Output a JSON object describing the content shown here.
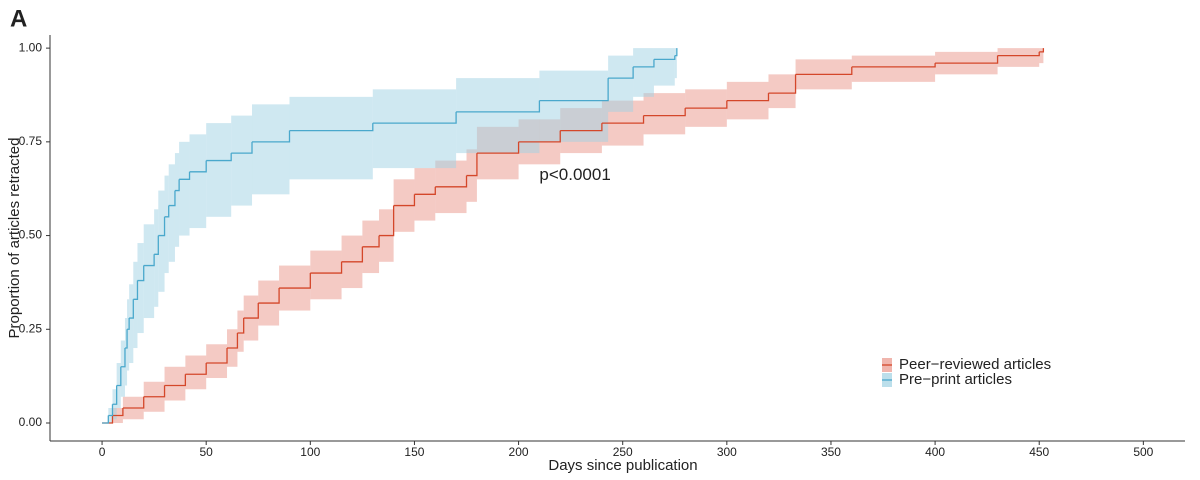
{
  "panel_label": "A",
  "chart_data": {
    "type": "step",
    "xlabel": "Days since publication",
    "ylabel": "Proportion of articles retracted",
    "annotation": {
      "text": "p<0.0001",
      "x": 210,
      "y": 0.66
    },
    "xlim": [
      -25,
      520
    ],
    "ylim": [
      -0.048,
      1.035
    ],
    "xticks": [
      0,
      50,
      100,
      150,
      200,
      250,
      300,
      350,
      400,
      450,
      500
    ],
    "yticks": [
      {
        "value": 0,
        "label": "0.00"
      },
      {
        "value": 0.25,
        "label": "0.25"
      },
      {
        "value": 0.5,
        "label": "0.50"
      },
      {
        "value": 0.75,
        "label": "0.75"
      },
      {
        "value": 1,
        "label": "1.00"
      }
    ],
    "legend_position": "bottom-right",
    "series": [
      {
        "name": "Peer−reviewed articles",
        "color": "#d4472a",
        "band_color": "#e9958a",
        "x": [
          0,
          5,
          10,
          20,
          30,
          40,
          50,
          60,
          65,
          68,
          75,
          85,
          100,
          115,
          125,
          133,
          140,
          150,
          160,
          175,
          180,
          200,
          220,
          240,
          260,
          280,
          300,
          320,
          333,
          360,
          400,
          430,
          450,
          452
        ],
        "values": [
          0,
          0.02,
          0.04,
          0.07,
          0.1,
          0.13,
          0.16,
          0.2,
          0.24,
          0.28,
          0.32,
          0.36,
          0.4,
          0.43,
          0.47,
          0.5,
          0.58,
          0.61,
          0.63,
          0.66,
          0.72,
          0.75,
          0.78,
          0.8,
          0.82,
          0.84,
          0.86,
          0.88,
          0.93,
          0.95,
          0.96,
          0.98,
          0.99,
          1.0
        ],
        "lower": [
          0,
          0,
          0.01,
          0.03,
          0.06,
          0.09,
          0.12,
          0.15,
          0.19,
          0.22,
          0.26,
          0.3,
          0.33,
          0.36,
          0.4,
          0.43,
          0.51,
          0.54,
          0.56,
          0.59,
          0.65,
          0.69,
          0.72,
          0.74,
          0.77,
          0.79,
          0.81,
          0.84,
          0.89,
          0.91,
          0.93,
          0.95,
          0.96,
          0.97
        ],
        "upper": [
          0,
          0.04,
          0.07,
          0.11,
          0.15,
          0.18,
          0.21,
          0.25,
          0.3,
          0.34,
          0.38,
          0.42,
          0.46,
          0.5,
          0.54,
          0.57,
          0.65,
          0.68,
          0.7,
          0.73,
          0.79,
          0.81,
          0.84,
          0.86,
          0.88,
          0.89,
          0.91,
          0.93,
          0.97,
          0.98,
          0.99,
          1.0,
          1.0,
          1.0
        ]
      },
      {
        "name": "Pre−print articles",
        "color": "#4aa8cc",
        "band_color": "#9fd2e3",
        "x": [
          0,
          3,
          5,
          7,
          9,
          11,
          12,
          13,
          15,
          17,
          20,
          25,
          27,
          30,
          32,
          35,
          37,
          42,
          50,
          62,
          72,
          90,
          130,
          170,
          210,
          243,
          255,
          265,
          275,
          276
        ],
        "values": [
          0,
          0.02,
          0.05,
          0.1,
          0.15,
          0.2,
          0.25,
          0.28,
          0.33,
          0.38,
          0.42,
          0.45,
          0.5,
          0.55,
          0.58,
          0.62,
          0.65,
          0.67,
          0.7,
          0.72,
          0.75,
          0.78,
          0.8,
          0.83,
          0.86,
          0.92,
          0.95,
          0.97,
          0.98,
          1.0
        ],
        "lower": [
          0,
          0,
          0.01,
          0.04,
          0.07,
          0.1,
          0.14,
          0.16,
          0.2,
          0.24,
          0.28,
          0.31,
          0.35,
          0.4,
          0.43,
          0.47,
          0.5,
          0.52,
          0.55,
          0.58,
          0.61,
          0.65,
          0.68,
          0.72,
          0.75,
          0.83,
          0.87,
          0.9,
          0.92,
          1.0
        ],
        "upper": [
          0,
          0.04,
          0.09,
          0.16,
          0.22,
          0.28,
          0.33,
          0.37,
          0.43,
          0.48,
          0.53,
          0.57,
          0.62,
          0.66,
          0.69,
          0.72,
          0.75,
          0.77,
          0.8,
          0.82,
          0.85,
          0.87,
          0.89,
          0.92,
          0.94,
          0.98,
          1.0,
          1.0,
          1.0,
          1.0
        ]
      }
    ]
  }
}
